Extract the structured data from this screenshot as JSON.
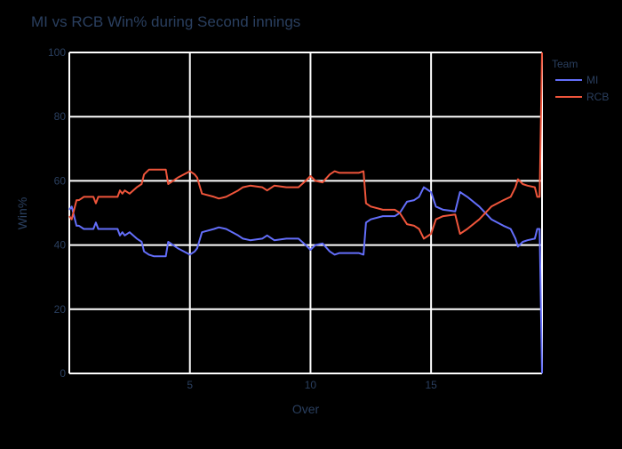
{
  "chart_data": {
    "type": "line",
    "title": "MI vs RCB Win% during Second innings",
    "xlabel": "Over",
    "ylabel": "Win%",
    "xlim": [
      0,
      19.6
    ],
    "ylim": [
      0,
      100
    ],
    "xticks": [
      5,
      10,
      15
    ],
    "yticks": [
      0,
      20,
      40,
      60,
      80,
      100
    ],
    "grid": true,
    "legend": {
      "title": "Team",
      "position": "top-right"
    },
    "colors": {
      "background": "#000000",
      "grid": "#ffffff",
      "text": "#2a3f5f"
    },
    "series": [
      {
        "name": "MI",
        "color": "#636efa",
        "x": [
          0,
          0.1,
          0.2,
          0.3,
          0.4,
          0.5,
          0.6,
          1.0,
          1.1,
          1.2,
          1.3,
          1.5,
          2.0,
          2.1,
          2.2,
          2.3,
          2.5,
          2.8,
          3.0,
          3.1,
          3.3,
          3.5,
          4.0,
          4.1,
          4.3,
          4.5,
          5.0,
          5.2,
          5.3,
          5.5,
          6.0,
          6.2,
          6.5,
          7.0,
          7.2,
          7.5,
          8.0,
          8.2,
          8.5,
          9.0,
          9.5,
          9.8,
          10.0,
          10.2,
          10.5,
          10.8,
          11.0,
          11.2,
          11.5,
          12.0,
          12.2,
          12.3,
          12.5,
          13.0,
          13.5,
          13.7,
          14.0,
          14.3,
          14.5,
          14.7,
          15.0,
          15.2,
          15.5,
          16.0,
          16.2,
          16.5,
          17.0,
          17.5,
          18.0,
          18.3,
          18.5,
          18.6,
          18.8,
          19.0,
          19.3,
          19.4,
          19.5,
          19.6
        ],
        "values": [
          51,
          52,
          49,
          46,
          46,
          45.5,
          45,
          45,
          47,
          45,
          45,
          45,
          45,
          43,
          44,
          43,
          44,
          42,
          41,
          38,
          37,
          36.5,
          36.5,
          41,
          40,
          39,
          37,
          38,
          39,
          44,
          45,
          45.5,
          45,
          43,
          42,
          41.5,
          42,
          43,
          41.5,
          42,
          42,
          40,
          38.5,
          40,
          40.5,
          38,
          37,
          37.5,
          37.5,
          37.5,
          37,
          47,
          48,
          49,
          49,
          50,
          53.5,
          54,
          55,
          58,
          56.5,
          52,
          51,
          50.5,
          56.5,
          55,
          52,
          48,
          46,
          45,
          42,
          39.5,
          41,
          41.5,
          42,
          45,
          45,
          0
        ]
      },
      {
        "name": "RCB",
        "color": "#ef553b",
        "x": [
          0,
          0.1,
          0.2,
          0.3,
          0.4,
          0.5,
          0.6,
          1.0,
          1.1,
          1.2,
          1.3,
          1.5,
          2.0,
          2.1,
          2.2,
          2.3,
          2.5,
          2.8,
          3.0,
          3.1,
          3.3,
          3.5,
          4.0,
          4.1,
          4.3,
          4.5,
          5.0,
          5.2,
          5.3,
          5.5,
          6.0,
          6.2,
          6.5,
          7.0,
          7.2,
          7.5,
          8.0,
          8.2,
          8.5,
          9.0,
          9.5,
          9.8,
          10.0,
          10.2,
          10.5,
          10.8,
          11.0,
          11.2,
          11.5,
          12.0,
          12.2,
          12.3,
          12.5,
          13.0,
          13.5,
          13.7,
          14.0,
          14.3,
          14.5,
          14.7,
          15.0,
          15.2,
          15.5,
          16.0,
          16.2,
          16.5,
          17.0,
          17.5,
          18.0,
          18.3,
          18.5,
          18.6,
          18.8,
          19.0,
          19.3,
          19.4,
          19.5,
          19.6
        ],
        "values": [
          49,
          48,
          51,
          54,
          54,
          54.5,
          55,
          55,
          53,
          55,
          55,
          55,
          55,
          57,
          56,
          57,
          56,
          58,
          59,
          62,
          63.5,
          63.5,
          63.5,
          59,
          60,
          61,
          63,
          62,
          61,
          56,
          55,
          54.5,
          55,
          57,
          58,
          58.5,
          58,
          57,
          58.5,
          58,
          58,
          60,
          61.5,
          60,
          59.5,
          62,
          63,
          62.5,
          62.5,
          62.5,
          63,
          53,
          52,
          51,
          51,
          50,
          46.5,
          46,
          45,
          42,
          43.5,
          48,
          49,
          49.5,
          43.5,
          45,
          48,
          52,
          54,
          55,
          58,
          60.5,
          59,
          58.5,
          58,
          55,
          55,
          100
        ]
      }
    ]
  }
}
